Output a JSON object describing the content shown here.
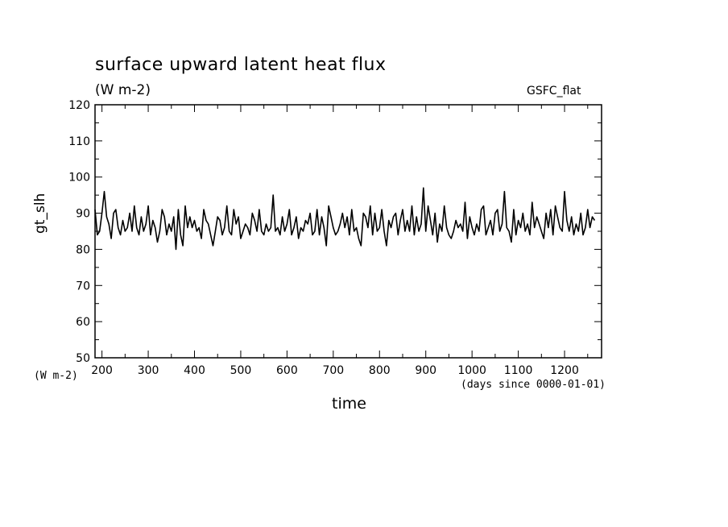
{
  "chart_data": {
    "type": "line",
    "title": "surface upward latent heat flux",
    "units": "(W m-2)",
    "tag": "GSFC_flat",
    "ylabel": "gt_slh",
    "y_units_label": "(W m-2)",
    "xlabel": "time",
    "x_units_label": "(days since 0000-01-01)",
    "xlim": [
      185,
      1280
    ],
    "ylim": [
      50,
      120
    ],
    "x_ticks": [
      200,
      300,
      400,
      500,
      600,
      700,
      800,
      900,
      1000,
      1100,
      1200
    ],
    "y_ticks": [
      50,
      60,
      70,
      80,
      90,
      100,
      110,
      120
    ],
    "grid": false,
    "series": [
      {
        "x_start": 185,
        "x_step": 5,
        "values": [
          91,
          84,
          85,
          90,
          96,
          89,
          87,
          83,
          90,
          91,
          86,
          84,
          88,
          85,
          86,
          90,
          85,
          92,
          86,
          84,
          89,
          85,
          87,
          92,
          84,
          88,
          86,
          82,
          85,
          91,
          89,
          84,
          87,
          85,
          89,
          80,
          91,
          84,
          81,
          92,
          86,
          89,
          86,
          88,
          85,
          86,
          83,
          91,
          88,
          87,
          84,
          81,
          85,
          89,
          88,
          84,
          86,
          92,
          85,
          84,
          91,
          87,
          89,
          83,
          85,
          87,
          86,
          84,
          90,
          88,
          85,
          91,
          85,
          84,
          87,
          85,
          86,
          95,
          85,
          86,
          84,
          89,
          85,
          87,
          91,
          84,
          86,
          89,
          83,
          86,
          85,
          88,
          87,
          90,
          84,
          85,
          91,
          84,
          89,
          86,
          81,
          92,
          89,
          86,
          84,
          85,
          87,
          90,
          86,
          89,
          84,
          91,
          85,
          86,
          83,
          81,
          90,
          89,
          86,
          92,
          84,
          90,
          85,
          86,
          91,
          85,
          81,
          88,
          86,
          89,
          90,
          84,
          88,
          91,
          85,
          88,
          85,
          92,
          84,
          89,
          85,
          87,
          97,
          85,
          92,
          88,
          84,
          90,
          82,
          87,
          85,
          92,
          86,
          84,
          83,
          85,
          88,
          86,
          87,
          85,
          93,
          83,
          89,
          86,
          84,
          87,
          85,
          91,
          92,
          84,
          86,
          88,
          84,
          90,
          91,
          85,
          87,
          96,
          86,
          85,
          82,
          91,
          84,
          88,
          86,
          90,
          85,
          87,
          84,
          93,
          86,
          89,
          87,
          85,
          83,
          90,
          86,
          91,
          84,
          92,
          89,
          86,
          85,
          96,
          88,
          85,
          89,
          84,
          87,
          85,
          90,
          84,
          86,
          91,
          86,
          89,
          88
        ]
      }
    ],
    "line_color": "#000000"
  }
}
